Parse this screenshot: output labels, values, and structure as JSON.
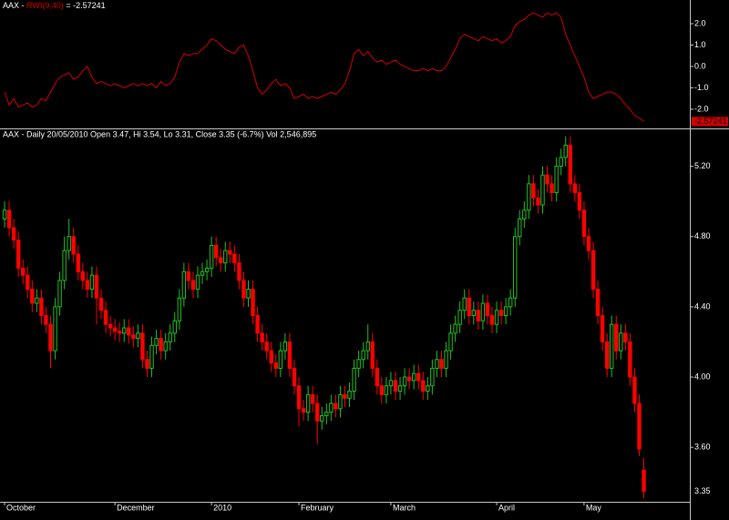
{
  "chart_data": [
    {
      "type": "line",
      "title_prefix": "AAX - ",
      "title_name": "RWI(9,40)",
      "title_suffix": " = -2.57241",
      "color": "#d40000",
      "xlim": [
        -0.6,
        149
      ],
      "ylim": [
        -2.81,
        3.02
      ],
      "yticks": [
        {
          "value": 2,
          "label": "2.0"
        },
        {
          "value": 1,
          "label": "1.0"
        },
        {
          "value": 0,
          "label": "0.0"
        },
        {
          "value": -1,
          "label": "-1.0"
        },
        {
          "value": -2,
          "label": "-2.0"
        }
      ],
      "values": [
        -1.2,
        -1.8,
        -1.5,
        -1.9,
        -1.8,
        -1.7,
        -1.9,
        -1.8,
        -1.5,
        -1.6,
        -1.2,
        -0.8,
        -0.5,
        -0.4,
        -0.3,
        -0.6,
        -0.5,
        -0.2,
        0.0,
        -0.5,
        -0.8,
        -0.7,
        -0.8,
        -0.9,
        -0.8,
        -0.9,
        -1.0,
        -0.9,
        -0.8,
        -0.9,
        -0.8,
        -0.9,
        -0.8,
        -1.0,
        -0.7,
        -0.9,
        -0.8,
        -0.5,
        0.2,
        0.6,
        0.5,
        0.6,
        0.6,
        0.8,
        1.0,
        1.3,
        1.2,
        1.0,
        0.8,
        0.7,
        0.6,
        0.9,
        1.0,
        0.5,
        -0.2,
        -1.0,
        -1.3,
        -1.1,
        -0.8,
        -0.6,
        -0.9,
        -0.8,
        -1.0,
        -1.5,
        -1.4,
        -1.3,
        -1.5,
        -1.4,
        -1.5,
        -1.4,
        -1.3,
        -1.2,
        -1.3,
        -1.1,
        -0.8,
        -0.2,
        0.6,
        0.8,
        0.5,
        0.7,
        0.4,
        0.2,
        0.3,
        0.1,
        0.2,
        0.3,
        0.1,
        0.0,
        -0.1,
        -0.2,
        -0.2,
        -0.1,
        -0.2,
        -0.1,
        -0.2,
        -0.2,
        0.0,
        0.4,
        0.8,
        1.3,
        1.5,
        1.4,
        1.3,
        1.2,
        1.4,
        1.3,
        1.2,
        1.3,
        1.1,
        1.2,
        1.4,
        1.9,
        2.1,
        2.2,
        2.4,
        2.5,
        2.4,
        2.3,
        2.5,
        2.4,
        2.5,
        2.3,
        1.5,
        1.0,
        0.5,
        0.0,
        -0.5,
        -1.2,
        -1.5,
        -1.4,
        -1.3,
        -1.2,
        -1.2,
        -1.3,
        -1.5,
        -1.8,
        -2.0,
        -2.3,
        -2.4,
        -2.57241
      ]
    },
    {
      "type": "candlestick",
      "title": "AAX - Daily 20/05/2010 Open 3.47, Hi 3.54, Lo 3.31, Close 3.35 (-6.7%) Vol 2,546,895",
      "up_color": "#1fc21f",
      "down_color": "#ff0000",
      "xlim": [
        -0.6,
        149
      ],
      "ylim": [
        3.29,
        5.4
      ],
      "xticks": [
        {
          "value": 0,
          "label": "October"
        },
        {
          "value": 24,
          "label": "December"
        },
        {
          "value": 45,
          "label": "2010"
        },
        {
          "value": 64,
          "label": "February"
        },
        {
          "value": 84,
          "label": "March"
        },
        {
          "value": 107,
          "label": "April"
        },
        {
          "value": 126,
          "label": "May"
        }
      ],
      "yticks": [
        {
          "value": 5.2,
          "label": "5.20"
        },
        {
          "value": 4.8,
          "label": "4.80"
        },
        {
          "value": 4.4,
          "label": "4.40"
        },
        {
          "value": 4,
          "label": "4.00"
        },
        {
          "value": 3.6,
          "label": "3.60"
        }
      ],
      "open": [
        4.9,
        4.95,
        4.85,
        4.78,
        4.62,
        4.58,
        4.5,
        4.42,
        4.45,
        4.35,
        4.3,
        4.15,
        4.4,
        4.55,
        4.72,
        4.8,
        4.7,
        4.6,
        4.55,
        4.5,
        4.58,
        4.45,
        4.38,
        4.3,
        4.28,
        4.26,
        4.25,
        4.28,
        4.24,
        4.22,
        4.25,
        4.1,
        4.05,
        4.18,
        4.22,
        4.15,
        4.2,
        4.25,
        4.32,
        4.45,
        4.6,
        4.55,
        4.5,
        4.58,
        4.6,
        4.62,
        4.75,
        4.68,
        4.65,
        4.72,
        4.7,
        4.65,
        4.55,
        4.45,
        4.5,
        4.35,
        4.25,
        4.2,
        4.15,
        4.08,
        4.05,
        4.15,
        4.2,
        4.05,
        3.95,
        3.82,
        3.8,
        3.9,
        3.85,
        3.75,
        3.78,
        3.8,
        3.85,
        3.82,
        3.9,
        3.88,
        3.92,
        4.05,
        4.1,
        4.15,
        4.2,
        4.05,
        3.95,
        3.9,
        3.95,
        3.98,
        3.92,
        3.95,
        4.0,
        3.98,
        4.02,
        3.98,
        3.92,
        3.95,
        4.05,
        4.1,
        4.05,
        4.15,
        4.25,
        4.3,
        4.38,
        4.45,
        4.35,
        4.38,
        4.32,
        4.42,
        4.35,
        4.3,
        4.38,
        4.35,
        4.4,
        4.45,
        4.8,
        4.9,
        4.95,
        5.1,
        5.02,
        4.98,
        5.15,
        5.1,
        5.05,
        5.2,
        5.25,
        5.32,
        5.1,
        5.05,
        4.95,
        4.8,
        4.72,
        4.5,
        4.35,
        4.2,
        4.05,
        4.3,
        4.15,
        4.25,
        4.2,
        4.0,
        3.85,
        3.47
      ],
      "high": [
        5.0,
        5.0,
        4.9,
        4.83,
        4.67,
        4.63,
        4.55,
        4.5,
        4.5,
        4.4,
        4.35,
        4.45,
        4.6,
        4.8,
        4.9,
        4.85,
        4.75,
        4.65,
        4.6,
        4.63,
        4.63,
        4.5,
        4.43,
        4.35,
        4.33,
        4.31,
        4.33,
        4.33,
        4.29,
        4.3,
        4.3,
        4.15,
        4.23,
        4.27,
        4.27,
        4.25,
        4.3,
        4.37,
        4.5,
        4.65,
        4.65,
        4.6,
        4.63,
        4.65,
        4.67,
        4.8,
        4.8,
        4.73,
        4.77,
        4.77,
        4.75,
        4.7,
        4.6,
        4.55,
        4.55,
        4.4,
        4.3,
        4.25,
        4.2,
        4.13,
        4.2,
        4.25,
        4.25,
        4.1,
        4.0,
        3.87,
        3.95,
        3.95,
        3.9,
        3.83,
        3.85,
        3.9,
        3.9,
        3.95,
        3.95,
        3.97,
        4.1,
        4.15,
        4.2,
        4.3,
        4.25,
        4.1,
        4.0,
        4.0,
        4.03,
        4.03,
        4.0,
        4.05,
        4.05,
        4.07,
        4.07,
        4.03,
        4.0,
        4.1,
        4.15,
        4.15,
        4.2,
        4.3,
        4.35,
        4.43,
        4.5,
        4.5,
        4.43,
        4.43,
        4.47,
        4.47,
        4.4,
        4.43,
        4.43,
        4.45,
        4.5,
        4.85,
        4.95,
        5.0,
        5.15,
        5.15,
        5.07,
        5.2,
        5.2,
        5.15,
        5.25,
        5.3,
        5.37,
        5.37,
        5.15,
        5.1,
        5.0,
        4.85,
        4.77,
        4.55,
        4.4,
        4.25,
        4.35,
        4.35,
        4.3,
        4.3,
        4.25,
        4.05,
        3.9,
        3.54
      ],
      "low": [
        4.85,
        4.8,
        4.73,
        4.57,
        4.53,
        4.45,
        4.37,
        4.37,
        4.3,
        4.25,
        4.05,
        4.1,
        4.35,
        4.5,
        4.67,
        4.65,
        4.55,
        4.5,
        4.45,
        4.45,
        4.3,
        4.33,
        4.25,
        4.23,
        4.21,
        4.2,
        4.2,
        4.19,
        4.17,
        4.17,
        4.05,
        4.0,
        4.0,
        4.13,
        4.1,
        4.1,
        4.15,
        4.2,
        4.27,
        4.4,
        4.5,
        4.45,
        4.45,
        4.53,
        4.55,
        4.57,
        4.63,
        4.6,
        4.6,
        4.65,
        4.6,
        4.5,
        4.4,
        4.4,
        4.3,
        4.2,
        4.15,
        4.1,
        4.03,
        4.0,
        4.0,
        4.1,
        4.0,
        3.9,
        3.72,
        3.75,
        3.75,
        3.8,
        3.62,
        3.7,
        3.73,
        3.75,
        3.77,
        3.77,
        3.83,
        3.83,
        3.87,
        4.0,
        4.05,
        4.1,
        4.0,
        3.9,
        3.85,
        3.85,
        3.9,
        3.87,
        3.87,
        3.9,
        3.93,
        3.93,
        3.93,
        3.87,
        3.87,
        3.9,
        4.0,
        4.0,
        4.0,
        4.1,
        4.2,
        4.25,
        4.33,
        4.3,
        4.3,
        4.27,
        4.27,
        4.3,
        4.25,
        4.25,
        4.3,
        4.3,
        4.35,
        4.4,
        4.75,
        4.85,
        4.9,
        4.97,
        4.93,
        4.93,
        5.05,
        5.0,
        5.0,
        5.15,
        5.2,
        5.05,
        5.0,
        4.9,
        4.75,
        4.67,
        4.45,
        4.3,
        4.15,
        4.0,
        4.0,
        4.1,
        4.1,
        4.15,
        3.95,
        3.8,
        3.55,
        3.31
      ],
      "close": [
        4.95,
        4.85,
        4.78,
        4.62,
        4.58,
        4.5,
        4.42,
        4.45,
        4.35,
        4.3,
        4.15,
        4.4,
        4.55,
        4.72,
        4.8,
        4.7,
        4.6,
        4.55,
        4.5,
        4.58,
        4.45,
        4.38,
        4.3,
        4.28,
        4.26,
        4.25,
        4.28,
        4.24,
        4.22,
        4.25,
        4.1,
        4.05,
        4.18,
        4.22,
        4.15,
        4.2,
        4.25,
        4.32,
        4.45,
        4.6,
        4.55,
        4.5,
        4.58,
        4.6,
        4.62,
        4.75,
        4.68,
        4.65,
        4.72,
        4.7,
        4.65,
        4.55,
        4.45,
        4.5,
        4.35,
        4.25,
        4.2,
        4.15,
        4.08,
        4.05,
        4.15,
        4.2,
        4.05,
        3.95,
        3.82,
        3.8,
        3.9,
        3.85,
        3.75,
        3.78,
        3.8,
        3.85,
        3.82,
        3.9,
        3.88,
        3.92,
        4.05,
        4.1,
        4.15,
        4.2,
        4.05,
        3.95,
        3.9,
        3.95,
        3.98,
        3.92,
        3.95,
        4.0,
        3.98,
        4.02,
        3.98,
        3.92,
        3.95,
        4.05,
        4.1,
        4.05,
        4.15,
        4.25,
        4.3,
        4.38,
        4.45,
        4.35,
        4.38,
        4.32,
        4.42,
        4.35,
        4.3,
        4.38,
        4.35,
        4.4,
        4.45,
        4.8,
        4.9,
        4.95,
        5.1,
        5.02,
        4.98,
        5.15,
        5.1,
        5.05,
        5.2,
        5.25,
        5.32,
        5.1,
        5.05,
        4.95,
        4.8,
        4.72,
        4.5,
        4.35,
        4.2,
        4.05,
        4.3,
        4.15,
        4.25,
        4.2,
        4.0,
        3.85,
        3.59,
        3.35
      ]
    }
  ]
}
